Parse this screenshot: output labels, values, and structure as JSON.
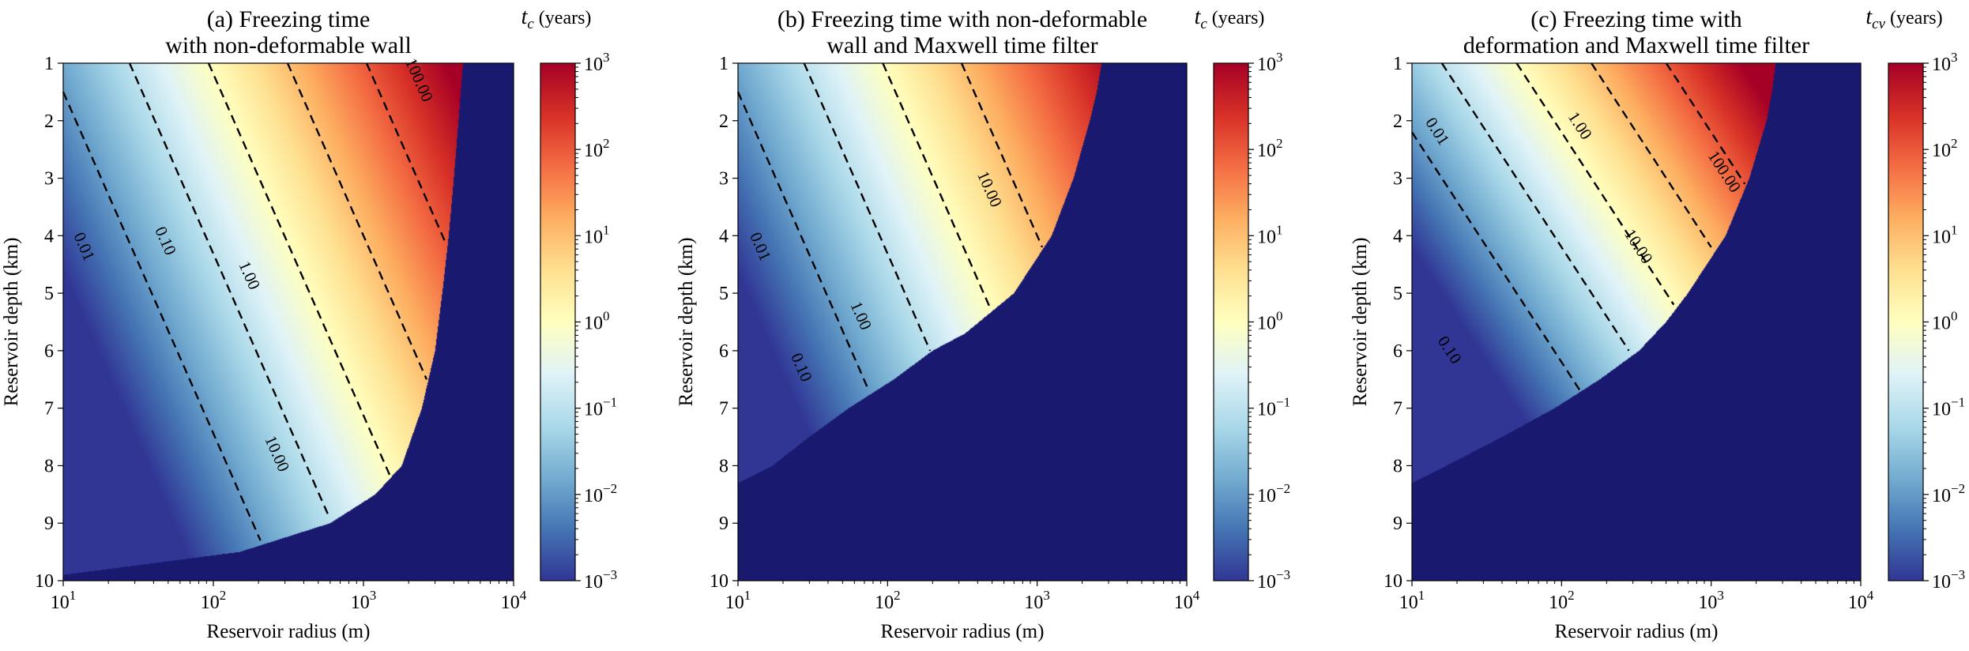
{
  "chart_data": [
    {
      "type": "heatmap",
      "panel": "a",
      "title_lines": [
        "(a) Freezing time",
        "with non-deformable wall"
      ],
      "xlabel": "Reservoir radius (m)",
      "ylabel": "Reservoir depth (km)",
      "x_scale": "log",
      "xlim": [
        10,
        10000
      ],
      "ylim": [
        1,
        10
      ],
      "y_inverted": true,
      "x_ticks": [
        {
          "base": "10",
          "exp": "1",
          "value": 10
        },
        {
          "base": "10",
          "exp": "2",
          "value": 100
        },
        {
          "base": "10",
          "exp": "3",
          "value": 1000
        },
        {
          "base": "10",
          "exp": "4",
          "value": 10000
        }
      ],
      "y_ticks": [
        "1",
        "2",
        "3",
        "4",
        "5",
        "6",
        "7",
        "8",
        "9",
        "10"
      ],
      "colorbar": {
        "label_symbol": "t",
        "label_sub": "c",
        "label_unit": "(years)",
        "scale": "log",
        "range": [
          0.001,
          1000
        ],
        "colormap": "RdYlBu_r",
        "ticks": [
          {
            "base": "10",
            "exp": "3",
            "value": 1000
          },
          {
            "base": "10",
            "exp": "2",
            "value": 100
          },
          {
            "base": "10",
            "exp": "1",
            "value": 10
          },
          {
            "base": "10",
            "exp": "0",
            "value": 1
          },
          {
            "base": "10",
            "exp": "−1",
            "value": 0.1
          },
          {
            "base": "10",
            "exp": "−2",
            "value": 0.01
          },
          {
            "base": "10",
            "exp": "−3",
            "value": 0.001
          }
        ]
      },
      "out_of_range_color": "#191970",
      "field": {
        "intercept": -1.84,
        "per_decade_radius": 1.9,
        "per_km_depth": -0.32,
        "depth_exponent": 1.0
      },
      "cutoff_boundary_radius_m": [
        [
          1,
          4600
        ],
        [
          2,
          4300
        ],
        [
          3,
          4000
        ],
        [
          4,
          3700
        ],
        [
          5,
          3350
        ],
        [
          6,
          3000
        ],
        [
          7,
          2450
        ],
        [
          8,
          1800
        ],
        [
          8.5,
          1200
        ],
        [
          9,
          600
        ],
        [
          9.5,
          150
        ],
        [
          9.9,
          10
        ]
      ],
      "contours": [
        {
          "level": 0.01,
          "label": "0.01",
          "label_at": [
            13.5,
            4.2
          ]
        },
        {
          "level": 0.1,
          "label": "0.10",
          "label_at": [
            47,
            4.1
          ]
        },
        {
          "level": 1,
          "label": "1.00",
          "label_at": [
            170,
            4.7
          ]
        },
        {
          "level": 10,
          "label": "10.00",
          "label_at": [
            260,
            7.8
          ]
        },
        {
          "level": 100,
          "label": "100.00",
          "label_at": [
            2300,
            1.3
          ]
        }
      ]
    },
    {
      "type": "heatmap",
      "panel": "b",
      "title_lines": [
        "(b) Freezing time with non-deformable",
        "wall and Maxwell time filter"
      ],
      "xlabel": "Reservoir radius (m)",
      "ylabel": "Reservoir depth (km)",
      "x_scale": "log",
      "xlim": [
        10,
        10000
      ],
      "ylim": [
        1,
        10
      ],
      "y_inverted": true,
      "x_ticks": [
        {
          "base": "10",
          "exp": "1",
          "value": 10
        },
        {
          "base": "10",
          "exp": "2",
          "value": 100
        },
        {
          "base": "10",
          "exp": "3",
          "value": 1000
        },
        {
          "base": "10",
          "exp": "4",
          "value": 10000
        }
      ],
      "y_ticks": [
        "1",
        "2",
        "3",
        "4",
        "5",
        "6",
        "7",
        "8",
        "9",
        "10"
      ],
      "colorbar": {
        "label_symbol": "t",
        "label_sub": "c",
        "label_unit": "(years)",
        "scale": "log",
        "range": [
          0.001,
          1000
        ],
        "colormap": "RdYlBu_r",
        "ticks": [
          {
            "base": "10",
            "exp": "3",
            "value": 1000
          },
          {
            "base": "10",
            "exp": "2",
            "value": 100
          },
          {
            "base": "10",
            "exp": "1",
            "value": 10
          },
          {
            "base": "10",
            "exp": "0",
            "value": 1
          },
          {
            "base": "10",
            "exp": "−1",
            "value": 0.1
          },
          {
            "base": "10",
            "exp": "−2",
            "value": 0.01
          },
          {
            "base": "10",
            "exp": "−3",
            "value": 0.001
          }
        ]
      },
      "out_of_range_color": "#191970",
      "field": {
        "intercept": -1.84,
        "per_decade_radius": 1.9,
        "per_km_depth": -0.32,
        "depth_exponent": 1.0
      },
      "cutoff_boundary_radius_m": [
        [
          1,
          2700
        ],
        [
          1.5,
          2500
        ],
        [
          2,
          2250
        ],
        [
          3,
          1750
        ],
        [
          4,
          1250
        ],
        [
          5,
          700
        ],
        [
          5.7,
          330
        ],
        [
          6,
          200
        ],
        [
          6.5,
          110
        ],
        [
          7,
          55
        ],
        [
          7.5,
          30
        ],
        [
          8,
          17
        ],
        [
          8.2,
          12
        ],
        [
          8.3,
          10
        ]
      ],
      "contours": [
        {
          "level": 0.01,
          "label": "0.01",
          "label_at": [
            13.8,
            4.2
          ]
        },
        {
          "level": 0.1,
          "label": "0.10",
          "label_at": [
            26,
            6.3
          ]
        },
        {
          "level": 1,
          "label": "1.00",
          "label_at": [
            65,
            5.4
          ]
        },
        {
          "level": 10,
          "label": "10.00",
          "label_at": [
            470,
            3.2
          ]
        }
      ]
    },
    {
      "type": "heatmap",
      "panel": "c",
      "title_lines": [
        "(c) Freezing time with",
        "deformation and Maxwell time filter"
      ],
      "xlabel": "Reservoir radius (m)",
      "ylabel": "Reservoir depth (km)",
      "x_scale": "log",
      "xlim": [
        10,
        10000
      ],
      "ylim": [
        1,
        10
      ],
      "y_inverted": true,
      "x_ticks": [
        {
          "base": "10",
          "exp": "1",
          "value": 10
        },
        {
          "base": "10",
          "exp": "2",
          "value": 100
        },
        {
          "base": "10",
          "exp": "3",
          "value": 1000
        },
        {
          "base": "10",
          "exp": "4",
          "value": 10000
        }
      ],
      "y_ticks": [
        "1",
        "2",
        "3",
        "4",
        "5",
        "6",
        "7",
        "8",
        "9",
        "10"
      ],
      "colorbar": {
        "label_symbol": "t",
        "label_sub": "cv",
        "label_unit": "(years)",
        "scale": "log",
        "range": [
          0.001,
          1000
        ],
        "colormap": "RdYlBu_r",
        "ticks": [
          {
            "base": "10",
            "exp": "3",
            "value": 1000
          },
          {
            "base": "10",
            "exp": "2",
            "value": 100
          },
          {
            "base": "10",
            "exp": "1",
            "value": 10
          },
          {
            "base": "10",
            "exp": "0",
            "value": 1
          },
          {
            "base": "10",
            "exp": "−1",
            "value": 0.1
          },
          {
            "base": "10",
            "exp": "−2",
            "value": 0.01
          },
          {
            "base": "10",
            "exp": "−3",
            "value": 0.001
          }
        ]
      },
      "out_of_range_color": "#191970",
      "field": {
        "intercept": -1.4,
        "per_decade_radius": 2.0,
        "per_km_depth": -0.5,
        "depth_exponent": 1.0
      },
      "cutoff_boundary_radius_m": [
        [
          1,
          2700
        ],
        [
          1.5,
          2550
        ],
        [
          2,
          2350
        ],
        [
          3,
          1800
        ],
        [
          4,
          1250
        ],
        [
          5,
          700
        ],
        [
          5.5,
          500
        ],
        [
          6,
          330
        ],
        [
          6.5,
          180
        ],
        [
          7,
          90
        ],
        [
          7.5,
          40
        ],
        [
          8,
          17
        ],
        [
          8.2,
          12
        ],
        [
          8.3,
          10
        ]
      ],
      "contours": [
        {
          "level": 0.01,
          "label": "0.01",
          "label_at": [
            14.5,
            2.2
          ]
        },
        {
          "level": 0.1,
          "label": "0.10",
          "label_at": [
            17.5,
            6.0
          ]
        },
        {
          "level": 1,
          "label": "1.00",
          "label_at": [
            130,
            2.1
          ]
        },
        {
          "level": 10,
          "label": "10.00",
          "label_at": [
            320,
            4.2
          ]
        },
        {
          "level": 100,
          "label": "100.00",
          "label_at": [
            1200,
            2.9
          ]
        }
      ]
    }
  ]
}
